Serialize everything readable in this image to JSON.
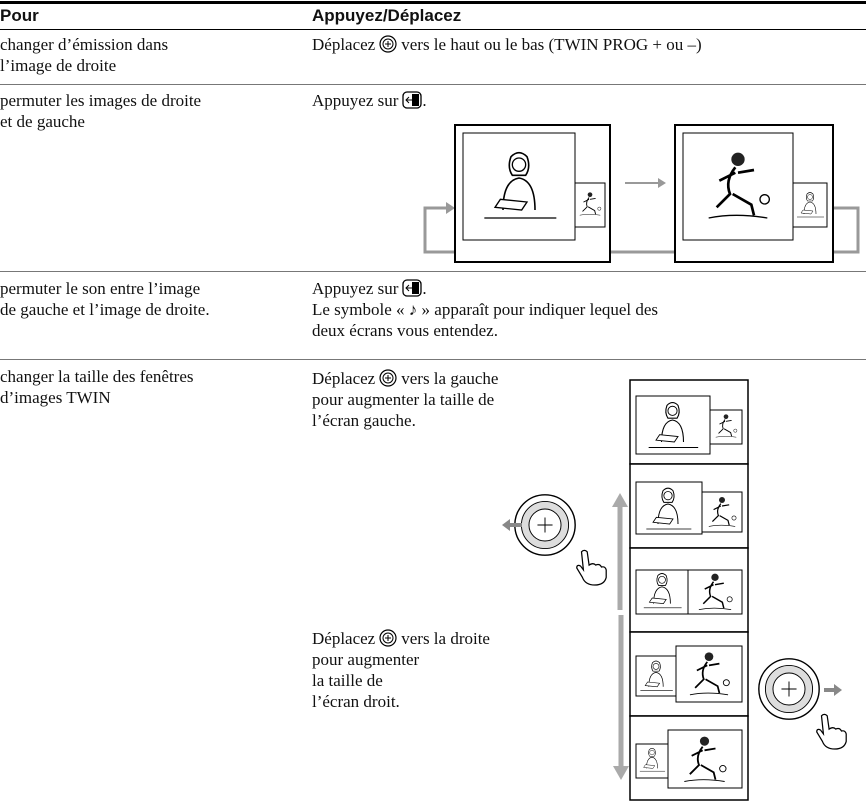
{
  "table": {
    "header": [
      "Pour",
      "Appuyez/Déplacez"
    ],
    "rows": [
      {
        "pour": [
          "changer d’émission dans",
          "l’image de droite"
        ],
        "action": [
          "Déplacez",
          "vers le haut ou le bas (TWIN PROG + ou –)"
        ]
      },
      {
        "pour": [
          "permuter les images de droite",
          "et de gauche"
        ],
        "action": [
          "Appuyez sur",
          "."
        ]
      },
      {
        "pour": [
          "permuter le son entre l’image",
          "de gauche et l’image de droite."
        ],
        "action": [
          "Appuyez sur",
          ".",
          "Le symbole « ♪ » apparaît pour indiquer lequel des",
          "deux écrans vous entendez."
        ]
      },
      {
        "pour": [
          "changer la taille des fenêtres",
          "d’images TWIN"
        ],
        "action": [
          "Déplacez",
          "vers la gauche",
          "pour augmenter la taille de",
          "l’écran gauche.",
          "Déplacez",
          "vers la droite",
          "pour augmenter",
          "la taille de",
          "l’écran droit."
        ]
      }
    ]
  }
}
